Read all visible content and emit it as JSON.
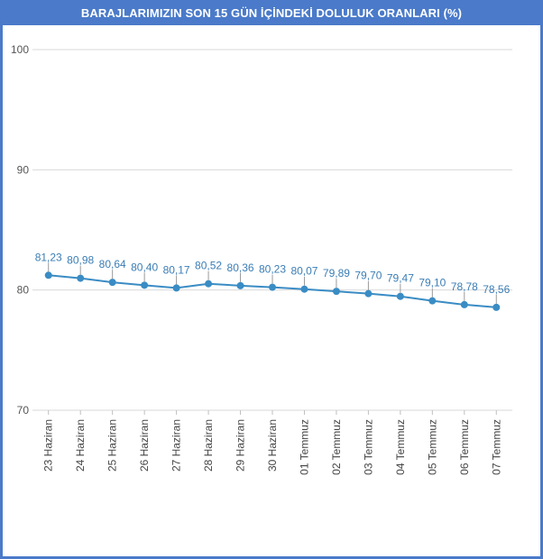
{
  "chart_data": {
    "type": "line",
    "title": "BARAJLARIMIZIN SON 15 GÜN İÇİNDEKİ DOLULUK ORANLARI (%)",
    "xlabel": "",
    "ylabel": "",
    "categories": [
      "23 Haziran",
      "24 Haziran",
      "25 Haziran",
      "26 Haziran",
      "27 Haziran",
      "28 Haziran",
      "29 Haziran",
      "30 Haziran",
      "01 Temmuz",
      "02 Temmuz",
      "03 Temmuz",
      "04 Temmuz",
      "05 Temmuz",
      "06 Temmuz",
      "07 Temmuz"
    ],
    "values": [
      81.23,
      80.98,
      80.64,
      80.4,
      80.17,
      80.52,
      80.36,
      80.23,
      80.07,
      79.89,
      79.7,
      79.47,
      79.1,
      78.78,
      78.56
    ],
    "data_labels": [
      "81,23",
      "80,98",
      "80,64",
      "80,40",
      "80,17",
      "80,52",
      "80,36",
      "80,23",
      "80,07",
      "79,89",
      "79,70",
      "79,47",
      "79,10",
      "78,78",
      "78,56"
    ],
    "ylim": [
      70,
      100
    ],
    "yticks": [
      70,
      80,
      90,
      100
    ],
    "grid": true,
    "line_color": "#3a8cc4",
    "grid_color": "#d9d9d9"
  },
  "header": {
    "title": "BARAJLARIMIZIN SON 15 GÜN İÇİNDEKİ DOLULUK ORANLARI (%)"
  }
}
